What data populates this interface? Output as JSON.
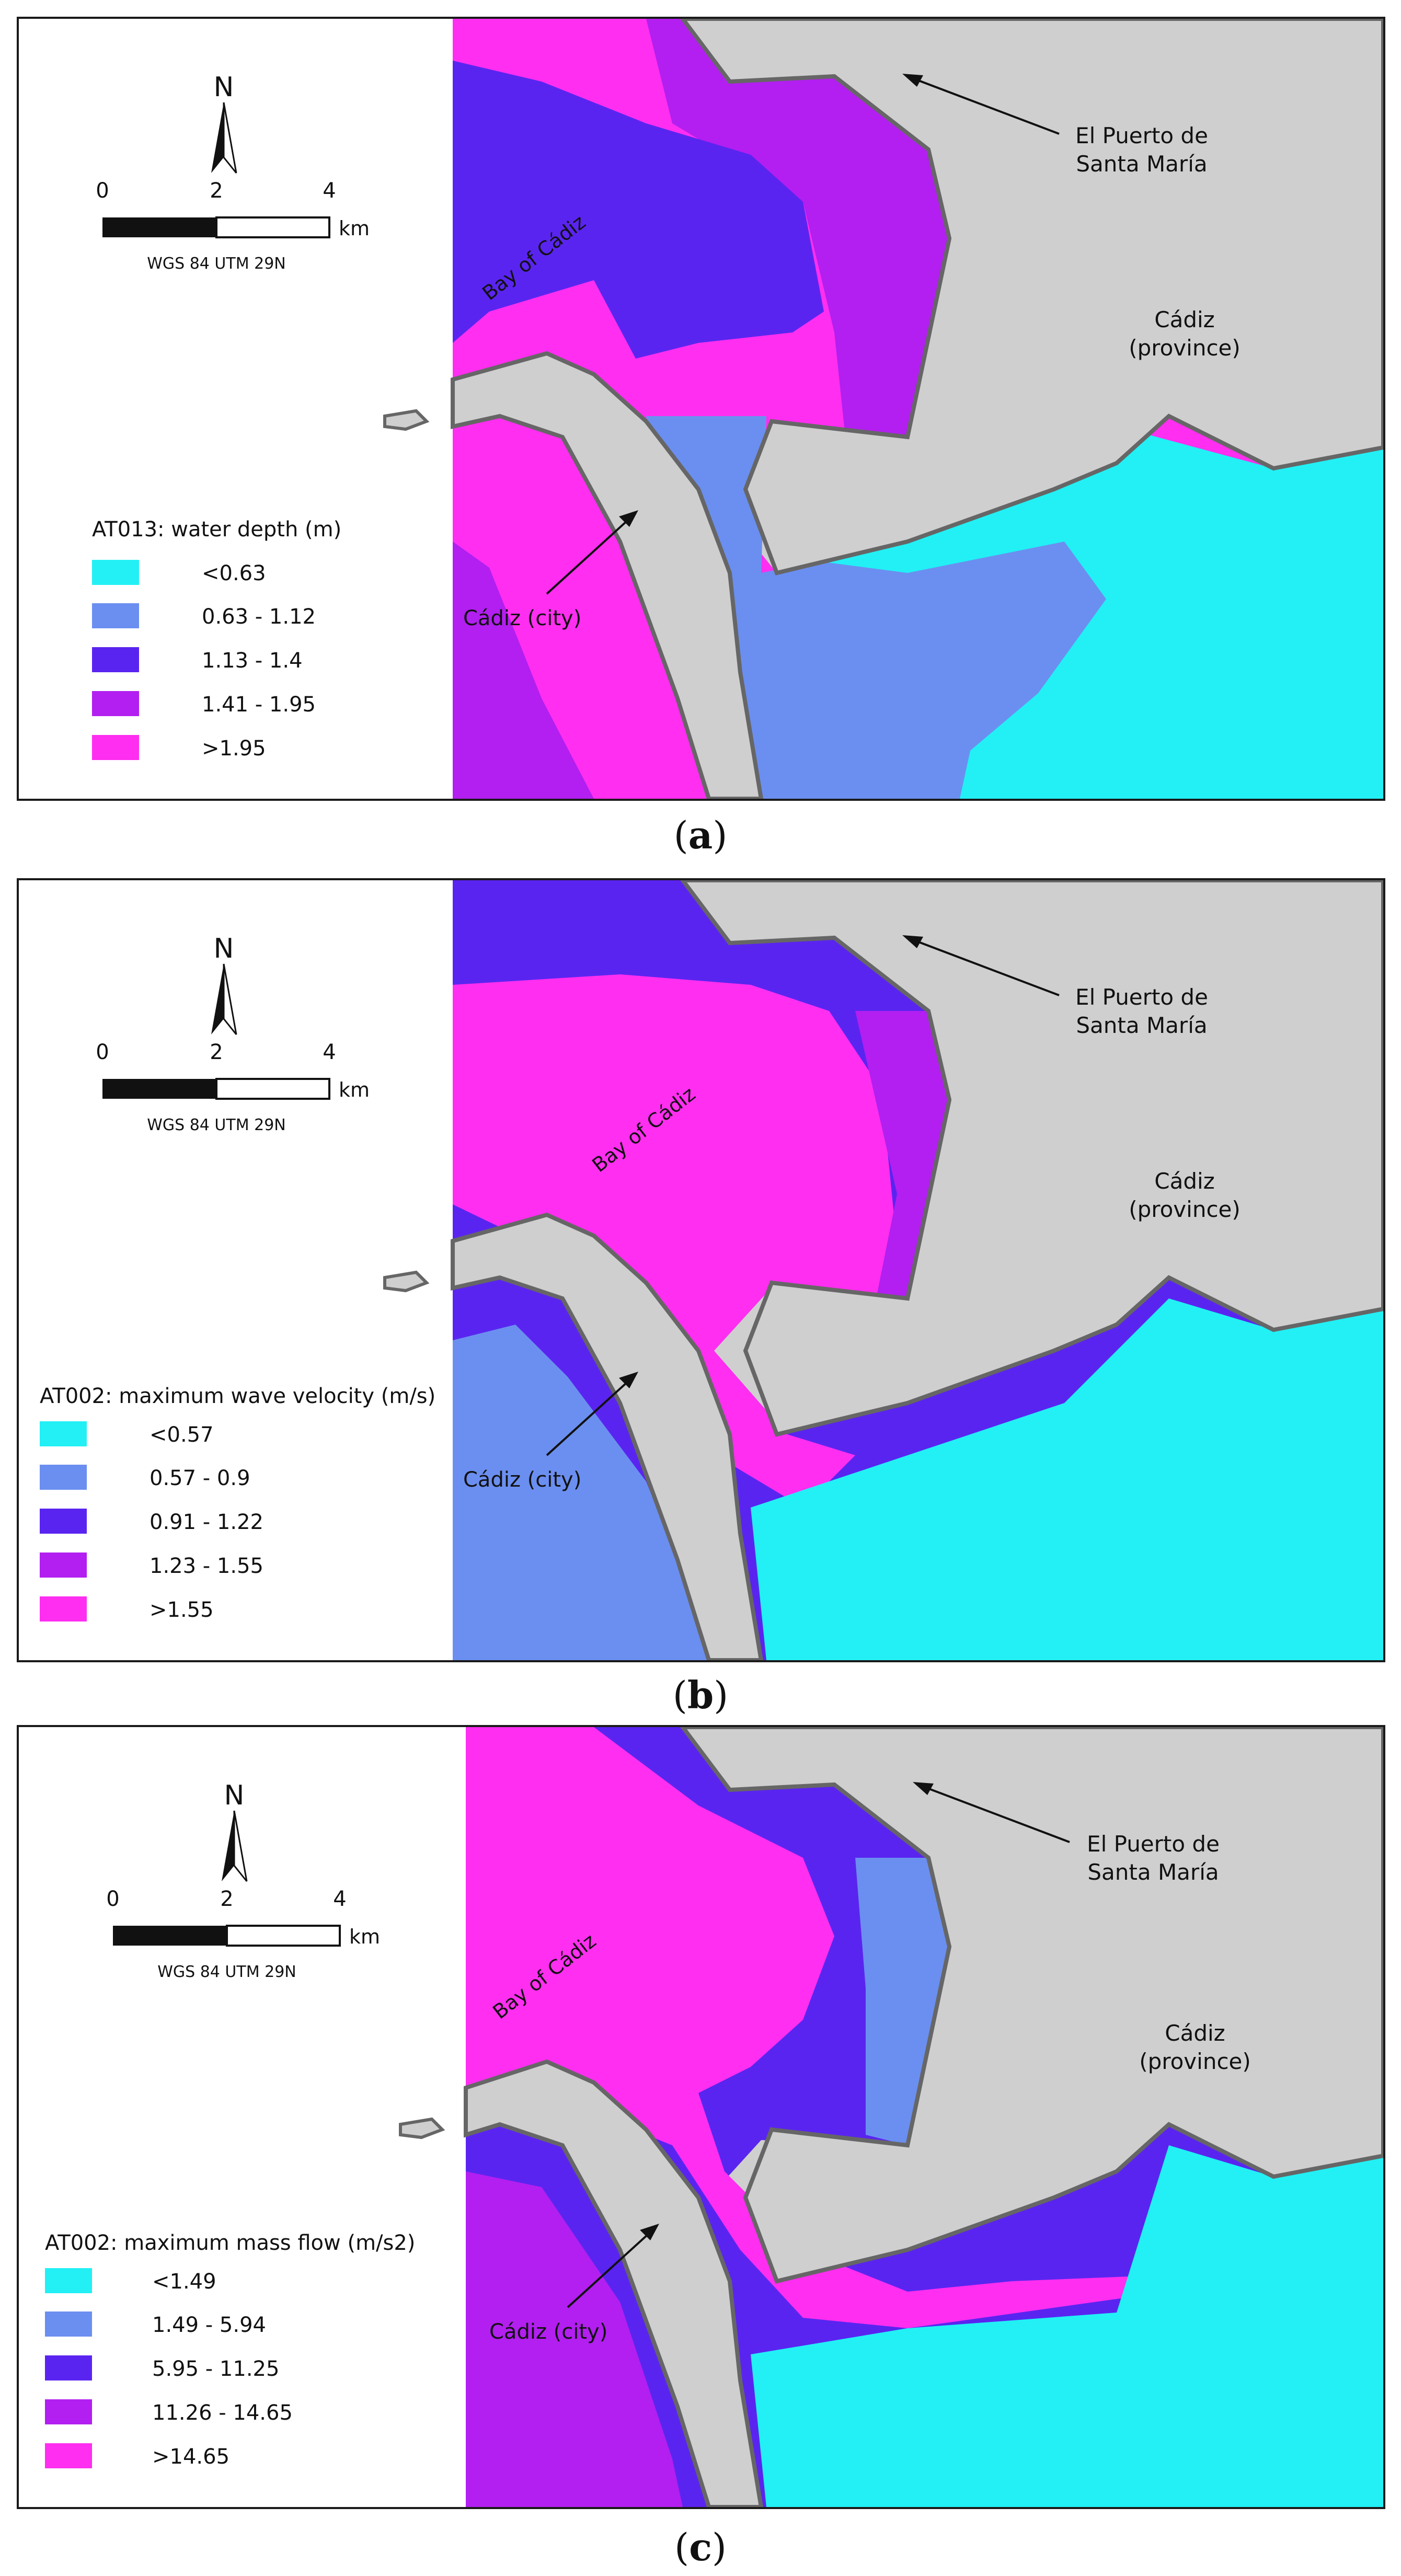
{
  "legend_colors": [
    "#22f0f5",
    "#6b8ff0",
    "#5a24f0",
    "#b21ff0",
    "#ff2ef0"
  ],
  "north_label": "N",
  "scale": {
    "ticks": [
      "0",
      "2",
      "4"
    ],
    "unit": "km",
    "crs": "WGS 84 UTM 29N"
  },
  "place_labels": {
    "puerto_line1": "El Puerto de",
    "puerto_line2": "Santa María",
    "province_line1": "Cádiz",
    "province_line2": "(province)",
    "city": "Cádiz (city)",
    "bay": "Bay of Cádiz"
  },
  "panels": [
    {
      "caption_open": "(",
      "caption_letter": "a",
      "caption_close": ")",
      "legend_title": "AT013: water depth (m)",
      "legend_items": [
        "<0.63",
        "0.63 - 1.12",
        "1.13 - 1.4",
        "1.41 - 1.95",
        ">1.95"
      ]
    },
    {
      "caption_open": "(",
      "caption_letter": "b",
      "caption_close": ")",
      "legend_title": "AT002: maximum wave velocity (m/s)",
      "legend_items": [
        "<0.57",
        "0.57 - 0.9",
        "0.91 - 1.22",
        "1.23 - 1.55",
        ">1.55"
      ]
    },
    {
      "caption_open": "(",
      "caption_letter": "c",
      "caption_close": ")",
      "legend_title": "AT002: maximum mass flow (m/s2)",
      "legend_items": [
        "<1.49",
        "1.49 - 5.94",
        "5.95 - 11.25",
        "11.26 - 14.65",
        ">14.65"
      ]
    }
  ]
}
